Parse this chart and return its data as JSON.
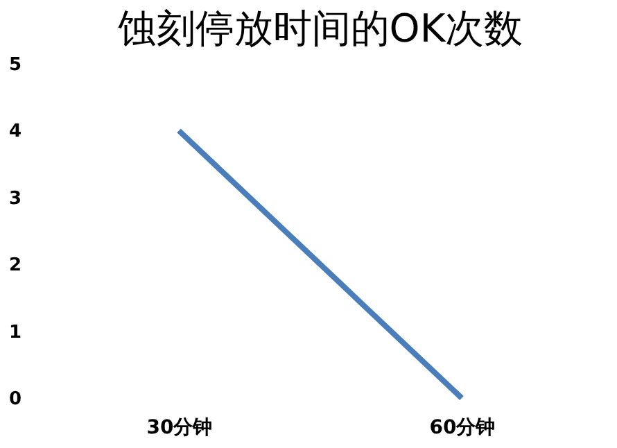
{
  "chart_data": {
    "type": "line",
    "title": "蚀刻停放时间的OK次数",
    "categories": [
      "30分钟",
      "60分钟"
    ],
    "series": [
      {
        "color": "#4a7ebb",
        "values": [
          4,
          0
        ]
      }
    ],
    "ylim": [
      0,
      5
    ],
    "yticks": [
      0,
      1,
      2,
      3,
      4,
      5
    ],
    "grid": false,
    "legend": false,
    "marker": "none",
    "line_style": "solid"
  }
}
